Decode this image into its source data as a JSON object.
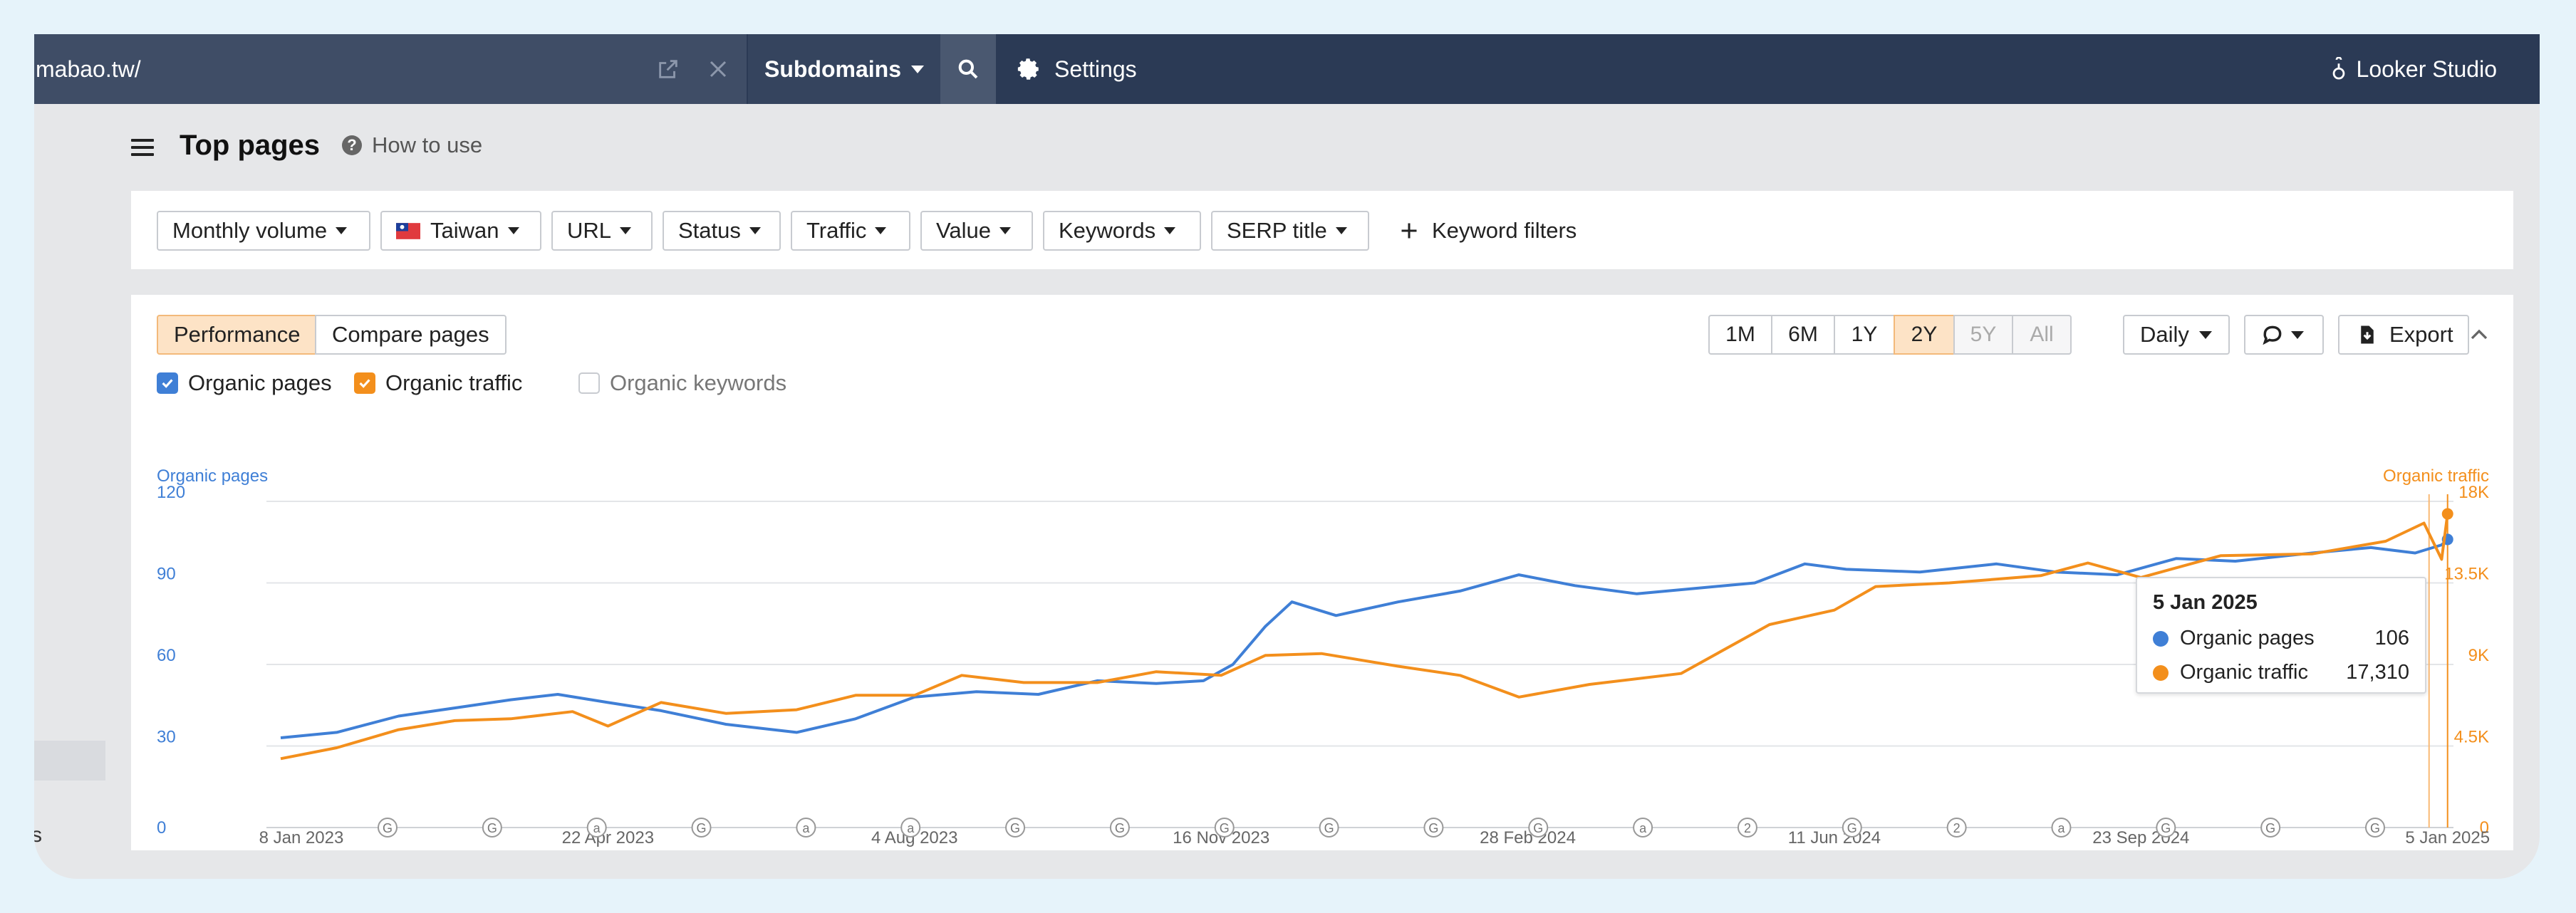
{
  "topbar": {
    "url": "mabao.tw/",
    "subdomains_label": "Subdomains",
    "settings_label": "Settings",
    "looker_label": "Looker Studio"
  },
  "sidebar": {
    "partial_text": "s"
  },
  "header": {
    "title": "Top pages",
    "how_to_use": "How to use"
  },
  "filters": {
    "monthly_volume": "Monthly volume",
    "country": "Taiwan",
    "url": "URL",
    "status": "Status",
    "traffic": "Traffic",
    "value": "Value",
    "keywords": "Keywords",
    "serp_title": "SERP title",
    "keyword_filters": "Keyword filters"
  },
  "chart_panel": {
    "tabs": {
      "performance": "Performance",
      "compare": "Compare pages"
    },
    "ranges": [
      "1M",
      "6M",
      "1Y",
      "2Y",
      "5Y",
      "All"
    ],
    "active_range": "2Y",
    "disabled_ranges": [
      "5Y",
      "All"
    ],
    "interval": "Daily",
    "export_label": "Export",
    "legend": {
      "organic_pages": "Organic pages",
      "organic_traffic": "Organic traffic",
      "organic_keywords": "Organic keywords"
    },
    "checked": {
      "organic_pages": true,
      "organic_traffic": true,
      "organic_keywords": false
    }
  },
  "tooltip": {
    "date": "5 Jan 2025",
    "rows": [
      {
        "label": "Organic pages",
        "value": "106"
      },
      {
        "label": "Organic traffic",
        "value": "17,310"
      }
    ]
  },
  "colors": {
    "pages": "#3f7fd6",
    "traffic": "#f38f1c",
    "nav": "#2b3a55",
    "active": "#fde3c6"
  },
  "chart_data": {
    "type": "line",
    "left_axis_label": "Organic pages",
    "right_axis_label": "Organic traffic",
    "left_ticks": [
      "0",
      "30",
      "60",
      "90",
      "120"
    ],
    "right_ticks": [
      "0",
      "4.5K",
      "9K",
      "13.5K",
      "18K"
    ],
    "left_range": [
      0,
      120
    ],
    "right_range": [
      0,
      18000
    ],
    "x_range": [
      "2023-01-01",
      "2025-01-07"
    ],
    "x_ticks": [
      {
        "label": "8 Jan 2023",
        "date": "2023-01-08"
      },
      {
        "label": "22 Apr 2023",
        "date": "2023-04-22"
      },
      {
        "label": "4 Aug 2023",
        "date": "2023-08-04"
      },
      {
        "label": "16 Nov 2023",
        "date": "2023-11-16"
      },
      {
        "label": "28 Feb 2024",
        "date": "2024-02-28"
      },
      {
        "label": "11 Jun 2024",
        "date": "2024-06-11"
      },
      {
        "label": "23 Sep 2024",
        "date": "2024-09-23"
      },
      {
        "label": "5 Jan 2025",
        "date": "2025-01-05"
      }
    ],
    "series": [
      {
        "name": "Organic pages",
        "axis": "left",
        "points": [
          [
            "2023-01-01",
            33
          ],
          [
            "2023-01-20",
            35
          ],
          [
            "2023-02-10",
            41
          ],
          [
            "2023-03-01",
            44
          ],
          [
            "2023-03-20",
            47
          ],
          [
            "2023-04-05",
            49
          ],
          [
            "2023-04-22",
            46
          ],
          [
            "2023-05-10",
            43
          ],
          [
            "2023-06-01",
            38
          ],
          [
            "2023-06-25",
            35
          ],
          [
            "2023-07-15",
            40
          ],
          [
            "2023-08-04",
            48
          ],
          [
            "2023-08-25",
            50
          ],
          [
            "2023-09-15",
            49
          ],
          [
            "2023-10-05",
            54
          ],
          [
            "2023-10-25",
            53
          ],
          [
            "2023-11-10",
            54
          ],
          [
            "2023-11-20",
            60
          ],
          [
            "2023-12-01",
            74
          ],
          [
            "2023-12-10",
            83
          ],
          [
            "2023-12-25",
            78
          ],
          [
            "2024-01-15",
            83
          ],
          [
            "2024-02-05",
            87
          ],
          [
            "2024-02-25",
            93
          ],
          [
            "2024-03-15",
            89
          ],
          [
            "2024-04-05",
            86
          ],
          [
            "2024-04-25",
            88
          ],
          [
            "2024-05-15",
            90
          ],
          [
            "2024-06-01",
            97
          ],
          [
            "2024-06-15",
            95
          ],
          [
            "2024-07-10",
            94
          ],
          [
            "2024-08-05",
            97
          ],
          [
            "2024-08-25",
            94
          ],
          [
            "2024-09-15",
            93
          ],
          [
            "2024-10-05",
            99
          ],
          [
            "2024-10-25",
            98
          ],
          [
            "2024-11-20",
            101
          ],
          [
            "2024-12-10",
            103
          ],
          [
            "2024-12-25",
            101
          ],
          [
            "2025-01-03",
            104
          ],
          [
            "2025-01-05",
            106
          ]
        ]
      },
      {
        "name": "Organic traffic",
        "axis": "right",
        "points": [
          [
            "2023-01-01",
            3800
          ],
          [
            "2023-01-20",
            4400
          ],
          [
            "2023-02-10",
            5400
          ],
          [
            "2023-03-01",
            5900
          ],
          [
            "2023-03-20",
            6000
          ],
          [
            "2023-04-10",
            6400
          ],
          [
            "2023-04-22",
            5600
          ],
          [
            "2023-05-10",
            6900
          ],
          [
            "2023-06-01",
            6300
          ],
          [
            "2023-06-25",
            6500
          ],
          [
            "2023-07-15",
            7300
          ],
          [
            "2023-08-04",
            7300
          ],
          [
            "2023-08-20",
            8400
          ],
          [
            "2023-09-10",
            8000
          ],
          [
            "2023-10-05",
            8000
          ],
          [
            "2023-10-25",
            8600
          ],
          [
            "2023-11-16",
            8400
          ],
          [
            "2023-12-01",
            9500
          ],
          [
            "2023-12-20",
            9600
          ],
          [
            "2024-01-15",
            8900
          ],
          [
            "2024-02-05",
            8400
          ],
          [
            "2024-02-25",
            7200
          ],
          [
            "2024-03-20",
            7900
          ],
          [
            "2024-04-20",
            8500
          ],
          [
            "2024-05-20",
            11200
          ],
          [
            "2024-06-11",
            12000
          ],
          [
            "2024-06-25",
            13300
          ],
          [
            "2024-07-20",
            13500
          ],
          [
            "2024-08-20",
            13900
          ],
          [
            "2024-09-05",
            14600
          ],
          [
            "2024-09-23",
            13800
          ],
          [
            "2024-10-20",
            15000
          ],
          [
            "2024-11-20",
            15100
          ],
          [
            "2024-12-15",
            15800
          ],
          [
            "2024-12-28",
            16800
          ],
          [
            "2025-01-03",
            14800
          ],
          [
            "2025-01-05",
            17310
          ]
        ]
      }
    ],
    "annotations": [
      "G",
      "G",
      "a",
      "G",
      "a",
      "a",
      "G",
      "G",
      "G",
      "G",
      "G",
      "G",
      "a",
      "2",
      "G",
      "2",
      "a",
      "G",
      "G",
      "G"
    ],
    "tooltip_date": "2025-01-05",
    "grid": true,
    "legend_position": "top-left"
  }
}
